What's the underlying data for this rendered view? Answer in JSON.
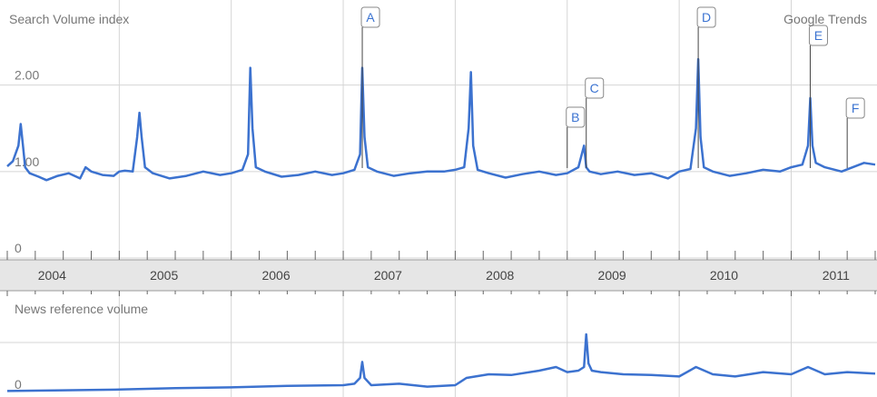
{
  "chart_data": [
    {
      "type": "line",
      "title": "Search Volume index",
      "brand": "Google Trends",
      "ytick_labels": [
        "0",
        "1.00",
        "2.00"
      ],
      "yticks": [
        0,
        1.0,
        2.0
      ],
      "ylim": [
        0,
        2.9
      ],
      "xlim": [
        2004.0,
        2011.75
      ],
      "grid": true,
      "color": "#3c72cf",
      "series": [
        {
          "x": [
            2004.0,
            2004.05,
            2004.1,
            2004.12,
            2004.14,
            2004.16,
            2004.2,
            2004.28,
            2004.35,
            2004.45,
            2004.55,
            2004.65,
            2004.7,
            2004.75,
            2004.85,
            2004.95,
            2005.0,
            2005.05,
            2005.12,
            2005.16,
            2005.18,
            2005.2,
            2005.23,
            2005.3,
            2005.45,
            2005.6,
            2005.75,
            2005.9,
            2006.0,
            2006.1,
            2006.15,
            2006.17,
            2006.19,
            2006.22,
            2006.3,
            2006.45,
            2006.6,
            2006.75,
            2006.9,
            2007.0,
            2007.1,
            2007.15,
            2007.17,
            2007.19,
            2007.22,
            2007.3,
            2007.45,
            2007.6,
            2007.75,
            2007.9,
            2008.0,
            2008.08,
            2008.12,
            2008.14,
            2008.16,
            2008.2,
            2008.3,
            2008.45,
            2008.6,
            2008.75,
            2008.9,
            2009.0,
            2009.1,
            2009.15,
            2009.17,
            2009.2,
            2009.3,
            2009.45,
            2009.6,
            2009.75,
            2009.9,
            2010.0,
            2010.1,
            2010.15,
            2010.17,
            2010.19,
            2010.22,
            2010.3,
            2010.45,
            2010.6,
            2010.75,
            2010.9,
            2011.0,
            2011.1,
            2011.15,
            2011.17,
            2011.19,
            2011.22,
            2011.3,
            2011.45,
            2011.55,
            2011.65,
            2011.75
          ],
          "y": [
            1.06,
            1.12,
            1.3,
            1.55,
            1.3,
            1.05,
            0.98,
            0.94,
            0.9,
            0.95,
            0.98,
            0.92,
            1.05,
            1.0,
            0.96,
            0.95,
            1.0,
            1.01,
            1.0,
            1.4,
            1.68,
            1.4,
            1.05,
            0.98,
            0.92,
            0.95,
            1.0,
            0.96,
            0.98,
            1.02,
            1.2,
            2.2,
            1.5,
            1.05,
            1.0,
            0.94,
            0.96,
            1.0,
            0.96,
            0.98,
            1.02,
            1.2,
            2.2,
            1.4,
            1.05,
            1.0,
            0.95,
            0.98,
            1.0,
            1.0,
            1.02,
            1.05,
            1.5,
            2.15,
            1.3,
            1.02,
            0.98,
            0.93,
            0.97,
            1.0,
            0.96,
            0.98,
            1.05,
            1.3,
            1.05,
            1.0,
            0.97,
            1.0,
            0.96,
            0.98,
            0.92,
            1.0,
            1.03,
            1.5,
            2.3,
            1.4,
            1.05,
            1.0,
            0.95,
            0.98,
            1.02,
            1.0,
            1.05,
            1.08,
            1.3,
            1.85,
            1.3,
            1.1,
            1.05,
            1.0,
            1.05,
            1.1,
            1.08
          ]
        }
      ],
      "markers": [
        {
          "label": "A",
          "x": 2007.17
        },
        {
          "label": "B",
          "x": 2009.0
        },
        {
          "label": "C",
          "x": 2009.17
        },
        {
          "label": "D",
          "x": 2010.17
        },
        {
          "label": "E",
          "x": 2011.17
        },
        {
          "label": "F",
          "x": 2011.5
        }
      ]
    },
    {
      "type": "line",
      "title": "News reference volume",
      "ytick_labels": [
        "0"
      ],
      "yticks": [
        0
      ],
      "ylim": [
        0,
        1.0
      ],
      "xlim": [
        2004.0,
        2011.75
      ],
      "grid": true,
      "color": "#3c72cf",
      "series": [
        {
          "x": [
            2004.0,
            2004.5,
            2005.0,
            2005.5,
            2006.0,
            2006.5,
            2007.0,
            2007.1,
            2007.15,
            2007.17,
            2007.19,
            2007.25,
            2007.5,
            2007.75,
            2008.0,
            2008.1,
            2008.3,
            2008.5,
            2008.75,
            2008.9,
            2009.0,
            2009.1,
            2009.15,
            2009.17,
            2009.19,
            2009.22,
            2009.3,
            2009.5,
            2009.75,
            2010.0,
            2010.15,
            2010.3,
            2010.5,
            2010.75,
            2011.0,
            2011.15,
            2011.3,
            2011.5,
            2011.75
          ],
          "y": [
            0.02,
            0.03,
            0.04,
            0.06,
            0.07,
            0.09,
            0.1,
            0.12,
            0.2,
            0.42,
            0.2,
            0.1,
            0.12,
            0.08,
            0.1,
            0.2,
            0.25,
            0.24,
            0.3,
            0.35,
            0.28,
            0.3,
            0.35,
            0.8,
            0.4,
            0.3,
            0.28,
            0.25,
            0.24,
            0.22,
            0.35,
            0.25,
            0.22,
            0.28,
            0.25,
            0.35,
            0.25,
            0.28,
            0.26
          ]
        }
      ]
    }
  ],
  "year_axis": {
    "labels": [
      "2004",
      "2005",
      "2006",
      "2007",
      "2008",
      "2009",
      "2010",
      "2011"
    ]
  }
}
